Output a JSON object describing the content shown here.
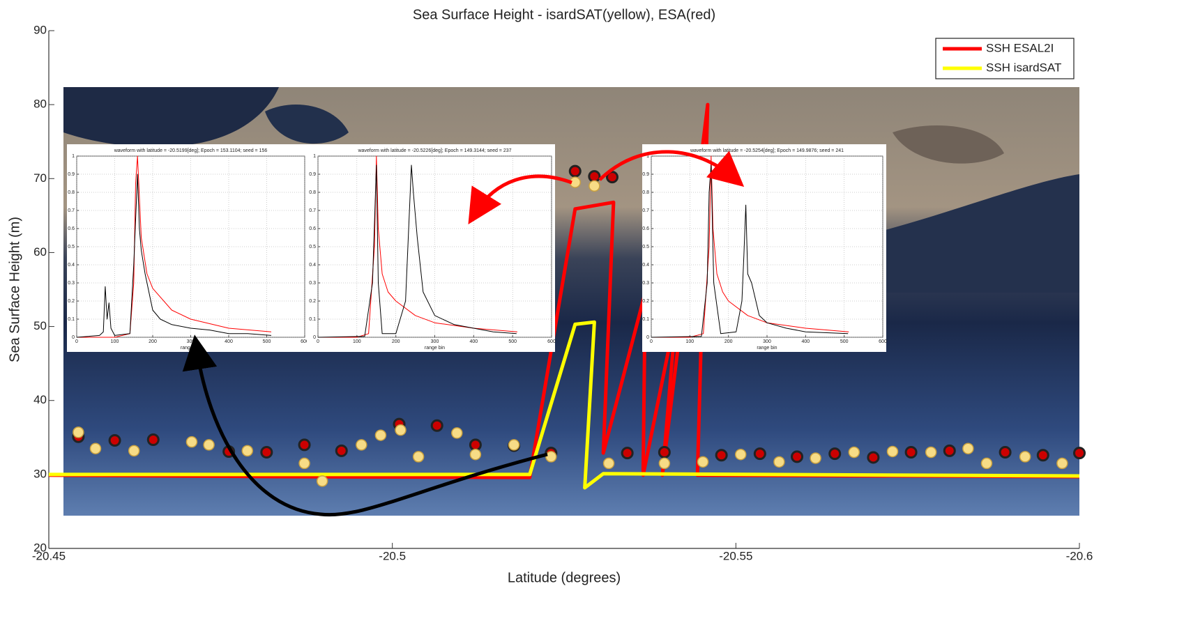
{
  "chart_data": [
    {
      "type": "line",
      "title": "Sea Surface Height - isardSAT(yellow), ESA(red)",
      "x_label": "Latitude (degrees)",
      "y_label": "Sea Surface Height (m)",
      "xlim": [
        -20.45,
        -20.6
      ],
      "xticks": [
        -20.45,
        -20.5,
        -20.55,
        -20.6
      ],
      "ylim": [
        20,
        90
      ],
      "yticks": [
        20,
        30,
        40,
        50,
        60,
        70,
        80,
        90
      ],
      "legend": "upper right",
      "grid": false,
      "series": [
        {
          "name": "SSH ESAL2I",
          "color": "#ff0000",
          "x": [
            -20.45,
            -20.4835,
            -20.52,
            -20.5266,
            -20.5322,
            -20.5307,
            -20.5368,
            -20.5365,
            -20.5413,
            -20.5393,
            -20.5459,
            -20.5444,
            -20.6
          ],
          "values": [
            29.9,
            29.7,
            29.6,
            65.9,
            66.8,
            32.9,
            54.6,
            29.9,
            51.8,
            29.9,
            80.0,
            29.9,
            29.7
          ]
        },
        {
          "name": "SSH isardSAT",
          "color": "#ffff00",
          "x": [
            -20.45,
            -20.52,
            -20.5266,
            -20.5294,
            -20.528,
            -20.5307,
            -20.6
          ],
          "values": [
            30,
            30,
            50.3,
            50.6,
            28.2,
            30.1,
            29.8
          ]
        }
      ],
      "points": [
        {
          "color": "#cc0000",
          "x": [
            -20.4543,
            -20.4596,
            -20.4652,
            -20.4762,
            -20.4817,
            -20.4872,
            -20.4926,
            -20.501,
            -20.5065,
            -20.5121,
            -20.5177,
            -20.5231,
            -20.5266,
            -20.5294,
            -20.532,
            -20.5342,
            -20.5396,
            -20.5479,
            -20.5535,
            -20.5589,
            -20.5644,
            -20.57,
            -20.5755,
            -20.5811,
            -20.5892,
            -20.5947,
            -20.6
          ],
          "values": [
            35.1,
            34.6,
            34.7,
            33.1,
            33.0,
            34.0,
            33.2,
            36.8,
            36.6,
            34.0,
            33.9,
            32.9,
            71.0,
            70.3,
            70.2,
            32.9,
            33.0,
            32.6,
            32.8,
            32.4,
            32.8,
            32.3,
            33.0,
            33.2,
            33.0,
            32.6,
            32.9
          ]
        },
        {
          "color": "#f7dc86",
          "x": [
            -20.4543,
            -20.4568,
            -20.4624,
            -20.4708,
            -20.4733,
            -20.4789,
            -20.4872,
            -20.4898,
            -20.4955,
            -20.4983,
            -20.5012,
            -20.5038,
            -20.5094,
            -20.5121,
            -20.5177,
            -20.5231,
            -20.5266,
            -20.5294,
            -20.5315,
            -20.5396,
            -20.5452,
            -20.5507,
            -20.5563,
            -20.5616,
            -20.5672,
            -20.5728,
            -20.5784,
            -20.5838,
            -20.5865,
            -20.5921,
            -20.5975
          ],
          "values": [
            35.7,
            33.5,
            33.2,
            34.4,
            34.0,
            33.2,
            31.5,
            29.1,
            34.0,
            35.3,
            36.0,
            32.4,
            35.6,
            32.7,
            34.0,
            32.4,
            69.5,
            69.0,
            31.5,
            31.5,
            31.7,
            32.7,
            31.7,
            32.2,
            33.0,
            33.1,
            33.0,
            33.5,
            31.5,
            32.4,
            31.5
          ]
        }
      ]
    },
    {
      "type": "line",
      "title": "waveform with latitude = -20.5199[deg]; Epoch = 153.1104; seed = 156",
      "x_label": "range bin",
      "xlim": [
        0,
        600
      ],
      "xticks": [
        0,
        100,
        200,
        300,
        400,
        500,
        600
      ],
      "ylim": [
        0,
        1
      ],
      "yticks": [
        0,
        0.1,
        0.2,
        0.3,
        0.4,
        0.5,
        0.6,
        0.7,
        0.8,
        0.9,
        1
      ],
      "grid": true,
      "series": [
        {
          "color": "#ff0000",
          "x": [
            0,
            100,
            140,
            150,
            155,
            160,
            170,
            185,
            200,
            250,
            300,
            400,
            512
          ],
          "values": [
            0,
            0,
            0.02,
            0.3,
            0.85,
            1.0,
            0.55,
            0.35,
            0.27,
            0.15,
            0.1,
            0.05,
            0.03
          ]
        },
        {
          "color": "#000000",
          "x": [
            0,
            60,
            70,
            75,
            80,
            85,
            90,
            100,
            140,
            150,
            160,
            165,
            170,
            180,
            200,
            220,
            250,
            300,
            350,
            400,
            450,
            512
          ],
          "values": [
            0,
            0.01,
            0.03,
            0.28,
            0.1,
            0.19,
            0.05,
            0.01,
            0.02,
            0.4,
            0.9,
            0.6,
            0.48,
            0.35,
            0.15,
            0.1,
            0.07,
            0.05,
            0.04,
            0.02,
            0.02,
            0.01
          ]
        }
      ]
    },
    {
      "type": "line",
      "title": "waveform with latitude = -20.5226[deg]; Epoch = 149.3144; seed = 237",
      "x_label": "range bin",
      "xlim": [
        0,
        600
      ],
      "xticks": [
        0,
        100,
        200,
        300,
        400,
        500,
        600
      ],
      "ylim": [
        0,
        1
      ],
      "yticks": [
        0,
        0.1,
        0.2,
        0.3,
        0.4,
        0.5,
        0.6,
        0.7,
        0.8,
        0.9,
        1
      ],
      "grid": true,
      "series": [
        {
          "color": "#ff0000",
          "x": [
            0,
            100,
            130,
            145,
            150,
            155,
            165,
            180,
            200,
            250,
            300,
            400,
            512
          ],
          "values": [
            0,
            0,
            0.02,
            0.5,
            1.0,
            0.6,
            0.35,
            0.25,
            0.2,
            0.12,
            0.08,
            0.05,
            0.03
          ]
        },
        {
          "color": "#000000",
          "x": [
            0,
            120,
            140,
            150,
            155,
            165,
            200,
            225,
            235,
            240,
            245,
            255,
            270,
            300,
            350,
            400,
            450,
            510
          ],
          "values": [
            0,
            0.005,
            0.3,
            0.95,
            0.3,
            0.02,
            0.02,
            0.2,
            0.7,
            0.95,
            0.8,
            0.55,
            0.25,
            0.12,
            0.07,
            0.05,
            0.03,
            0.02
          ]
        }
      ]
    },
    {
      "type": "line",
      "title": "waveform with latitude = -20.5254[deg]; Epoch = 149.9876; seed = 241",
      "x_label": "range bin",
      "xlim": [
        0,
        600
      ],
      "xticks": [
        0,
        100,
        200,
        300,
        400,
        500,
        600
      ],
      "ylim": [
        0,
        1
      ],
      "yticks": [
        0,
        0.1,
        0.2,
        0.3,
        0.4,
        0.5,
        0.6,
        0.7,
        0.8,
        0.9,
        1
      ],
      "grid": true,
      "series": [
        {
          "color": "#ff0000",
          "x": [
            0,
            100,
            135,
            150,
            155,
            160,
            170,
            185,
            200,
            250,
            300,
            400,
            512
          ],
          "values": [
            0,
            0,
            0.02,
            0.5,
            1.0,
            0.6,
            0.35,
            0.25,
            0.2,
            0.12,
            0.08,
            0.05,
            0.03
          ]
        },
        {
          "color": "#000000",
          "x": [
            0,
            130,
            145,
            150,
            155,
            162,
            180,
            220,
            235,
            240,
            245,
            250,
            260,
            280,
            300,
            350,
            400,
            510
          ],
          "values": [
            0,
            0.005,
            0.3,
            0.8,
            0.95,
            0.3,
            0.02,
            0.03,
            0.2,
            0.45,
            0.73,
            0.35,
            0.3,
            0.12,
            0.08,
            0.05,
            0.03,
            0.02
          ]
        }
      ]
    }
  ]
}
